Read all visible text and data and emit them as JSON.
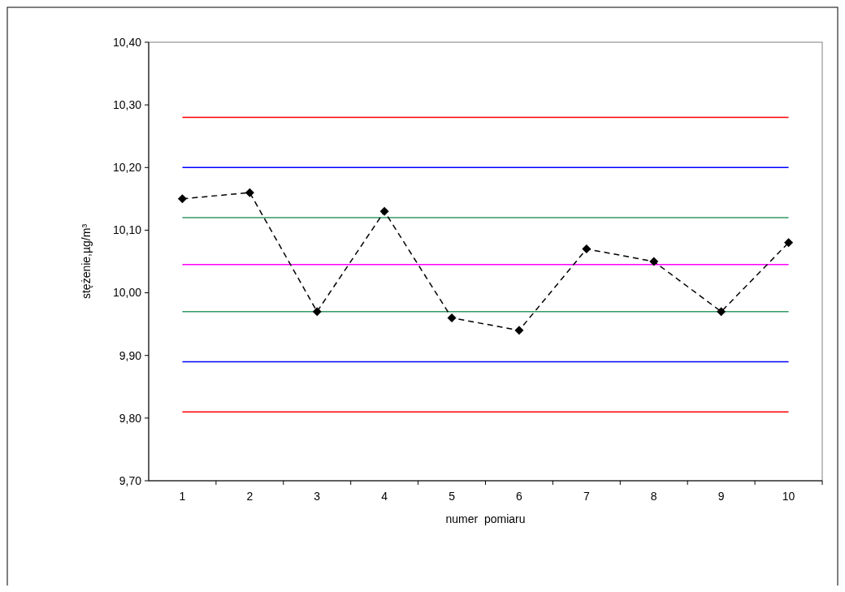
{
  "chart_data": {
    "type": "line",
    "xlabel": "numer  pomiaru",
    "ylabel": "stężenie,µg/m³",
    "categories": [
      "1",
      "2",
      "3",
      "4",
      "5",
      "6",
      "7",
      "8",
      "9",
      "10"
    ],
    "series": [
      {
        "color": "#000000",
        "values": [
          10.15,
          10.16,
          9.97,
          10.13,
          9.96,
          9.94,
          10.07,
          10.05,
          9.97,
          10.08
        ]
      }
    ],
    "ylim": [
      9.7,
      10.4
    ],
    "yticks": [
      {
        "value": 9.7,
        "label": "9,70"
      },
      {
        "value": 9.8,
        "label": "9,80"
      },
      {
        "value": 9.9,
        "label": "9,90"
      },
      {
        "value": 10.0,
        "label": "10,00"
      },
      {
        "value": 10.1,
        "label": "10,10"
      },
      {
        "value": 10.2,
        "label": "10,20"
      },
      {
        "value": 10.3,
        "label": "10,30"
      },
      {
        "value": 10.4,
        "label": "10,40"
      }
    ],
    "ref_lines": [
      {
        "axis": "y",
        "value": 10.28,
        "color": "#ff0000"
      },
      {
        "axis": "y",
        "value": 10.2,
        "color": "#0000ff"
      },
      {
        "axis": "y",
        "value": 10.12,
        "color": "#339966"
      },
      {
        "axis": "y",
        "value": 10.045,
        "color": "#ff00ff"
      },
      {
        "axis": "y",
        "value": 9.97,
        "color": "#339966"
      },
      {
        "axis": "y",
        "value": 9.89,
        "color": "#0000ff"
      },
      {
        "axis": "y",
        "value": 9.81,
        "color": "#ff0000"
      }
    ],
    "marker": "diamond",
    "line_style": "dashed",
    "grid": false
  }
}
